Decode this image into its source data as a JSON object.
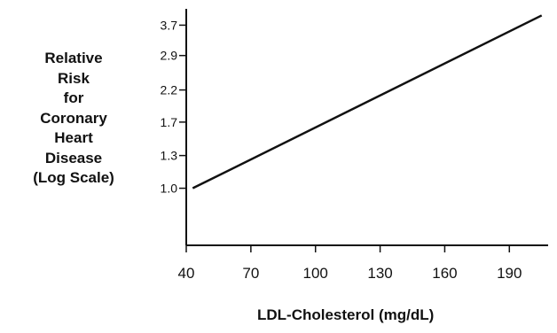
{
  "chart_data": {
    "type": "line",
    "title": "",
    "xlabel": "LDL-Cholesterol (mg/dL)",
    "ylabel_lines": [
      "Relative",
      "Risk",
      "for",
      "Coronary",
      "Heart",
      "Disease",
      "(Log Scale)"
    ],
    "y_scale": "log",
    "x_ticks": [
      40,
      70,
      100,
      130,
      160,
      190
    ],
    "y_ticks": [
      1.0,
      1.3,
      1.7,
      2.2,
      2.9,
      3.7
    ],
    "y_tick_labels": [
      "1.0",
      "1.3",
      "1.7",
      "2.2",
      "2.9",
      "3.7"
    ],
    "xlim": [
      40,
      208
    ],
    "ylim_log_index": [
      -1.75,
      5.5
    ],
    "grid": false,
    "series": [
      {
        "x": [
          43,
          205
        ],
        "y": [
          1.0,
          4.0
        ]
      }
    ]
  }
}
